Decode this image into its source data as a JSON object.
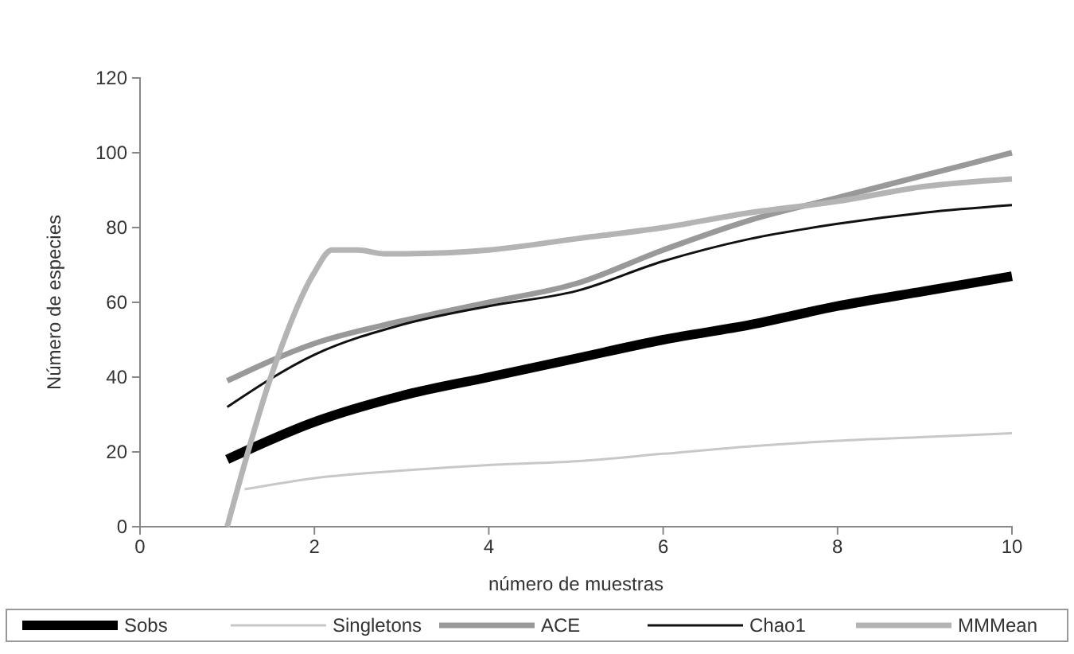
{
  "chart_data": {
    "type": "line",
    "xlabel": "número de muestras",
    "ylabel": "Número de especies",
    "xlim": [
      0,
      10
    ],
    "xticks": [
      0,
      2,
      4,
      6,
      8,
      10
    ],
    "ylim": [
      0,
      120
    ],
    "yticks": [
      0,
      20,
      40,
      60,
      80,
      100,
      120
    ],
    "grid": false,
    "legend": "bottom",
    "marker": "none",
    "line_style": "solid",
    "series": [
      {
        "name": "Sobs",
        "color": "#000000",
        "x": [
          1,
          2,
          3,
          4,
          5,
          6,
          7,
          8,
          9,
          10
        ],
        "values": [
          18,
          28,
          35,
          40,
          45,
          50,
          54,
          59,
          63,
          67
        ]
      },
      {
        "name": "Singletons",
        "color": "#c8c8c8",
        "x": [
          1.2,
          2,
          3,
          4,
          5,
          6,
          7,
          8,
          9,
          10
        ],
        "values": [
          10,
          13,
          15,
          16.5,
          17.5,
          19.5,
          21.5,
          23,
          24,
          25
        ]
      },
      {
        "name": "ACE",
        "color": "#999999",
        "x": [
          1,
          2,
          3,
          4,
          5,
          6,
          7,
          8,
          9,
          10
        ],
        "values": [
          39,
          49,
          55,
          60,
          65,
          74,
          82,
          88,
          94,
          100
        ]
      },
      {
        "name": "Chao1",
        "color": "#111111",
        "x": [
          1,
          2,
          3,
          4,
          5,
          6,
          7,
          8,
          9,
          10
        ],
        "values": [
          32,
          46,
          54,
          59,
          63,
          71,
          77,
          81,
          84,
          86
        ]
      },
      {
        "name": "MMMean",
        "color": "#b4b4b4",
        "x": [
          1,
          1.5,
          2,
          2.2,
          2.5,
          2.8,
          3,
          4,
          5,
          6,
          7,
          8,
          9,
          10
        ],
        "values": [
          0,
          40,
          68,
          74,
          74,
          73,
          73,
          74,
          77,
          80,
          84,
          87,
          91,
          93
        ]
      }
    ]
  }
}
